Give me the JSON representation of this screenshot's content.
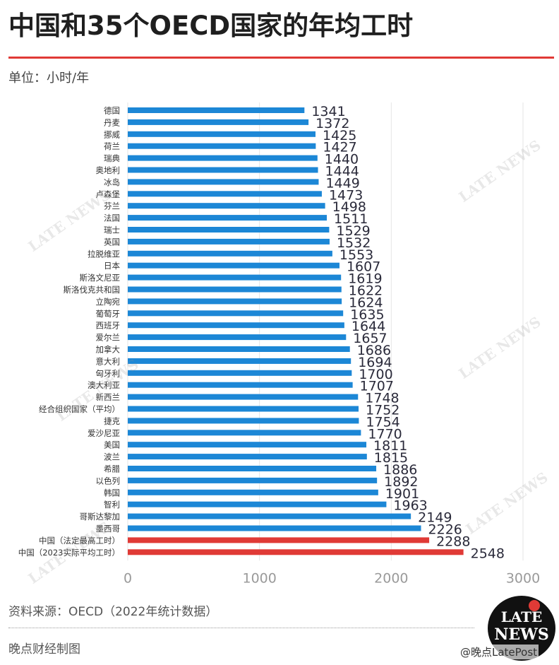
{
  "title": "中国和35个OECD国家的年均工时",
  "unit": "单位：小时/年",
  "source": "资料来源：OECD（2022年统计数据）",
  "credit": "晚点财经制图",
  "logo": {
    "line1": "LATE",
    "line2": "NEWS"
  },
  "weibo_mark": "@晚点LatePost",
  "watermark_text": "LATE NEWS",
  "colors": {
    "bar": "#1c87d6",
    "highlight": "#e03a36",
    "accent": "#e03a36"
  },
  "chart_data": {
    "type": "bar",
    "orientation": "horizontal",
    "categories": [
      "德国",
      "丹麦",
      "挪威",
      "荷兰",
      "瑞典",
      "奥地利",
      "冰岛",
      "卢森堡",
      "芬兰",
      "法国",
      "瑞士",
      "英国",
      "拉脱维亚",
      "日本",
      "斯洛文尼亚",
      "斯洛伐克共和国",
      "立陶宛",
      "葡萄牙",
      "西班牙",
      "爱尔兰",
      "加拿大",
      "意大利",
      "匈牙利",
      "澳大利亚",
      "新西兰",
      "经合组织国家（平均）",
      "捷克",
      "爱沙尼亚",
      "美国",
      "波兰",
      "希腊",
      "以色列",
      "韩国",
      "智利",
      "哥斯达黎加",
      "墨西哥",
      "中国（法定最高工时）",
      "中国（2023实际平均工时）"
    ],
    "values": [
      1341,
      1372,
      1425,
      1427,
      1440,
      1444,
      1449,
      1473,
      1498,
      1511,
      1529,
      1532,
      1553,
      1607,
      1619,
      1622,
      1624,
      1635,
      1644,
      1657,
      1686,
      1694,
      1700,
      1707,
      1748,
      1752,
      1754,
      1770,
      1811,
      1815,
      1886,
      1892,
      1901,
      1963,
      2149,
      2226,
      2288,
      2548
    ],
    "highlight_categories": [
      "中国（法定最高工时）",
      "中国（2023实际平均工时）"
    ],
    "xlim": [
      0,
      3000
    ],
    "xticks": [
      0,
      1000,
      2000,
      3000
    ],
    "xlabel": "",
    "ylabel": "",
    "grid": "vertical"
  }
}
